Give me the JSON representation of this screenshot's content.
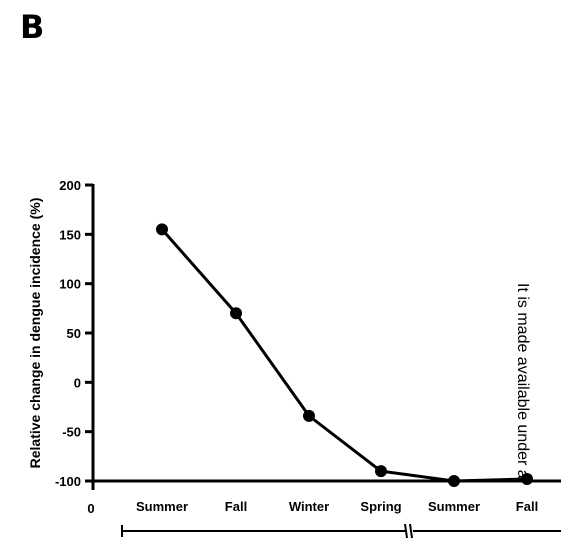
{
  "panel_label": "B",
  "side_note": "It is made available under a",
  "chart_data": {
    "type": "line",
    "title": "",
    "xlabel": "",
    "ylabel": "Relative change in dengue incidence (%)",
    "categories": [
      "Summer",
      "Fall",
      "Winter",
      "Spring",
      "Summer",
      "Fall"
    ],
    "series": [
      {
        "values": [
          155,
          70,
          -34,
          -90,
          -100,
          -98
        ]
      }
    ],
    "ylim": [
      -100,
      200
    ],
    "yticks": [
      -100,
      -50,
      0,
      50,
      100,
      150,
      200
    ],
    "x_origin_label": "0",
    "grid": false,
    "legend": "none",
    "line_color": "#000000",
    "axis_break": true
  }
}
